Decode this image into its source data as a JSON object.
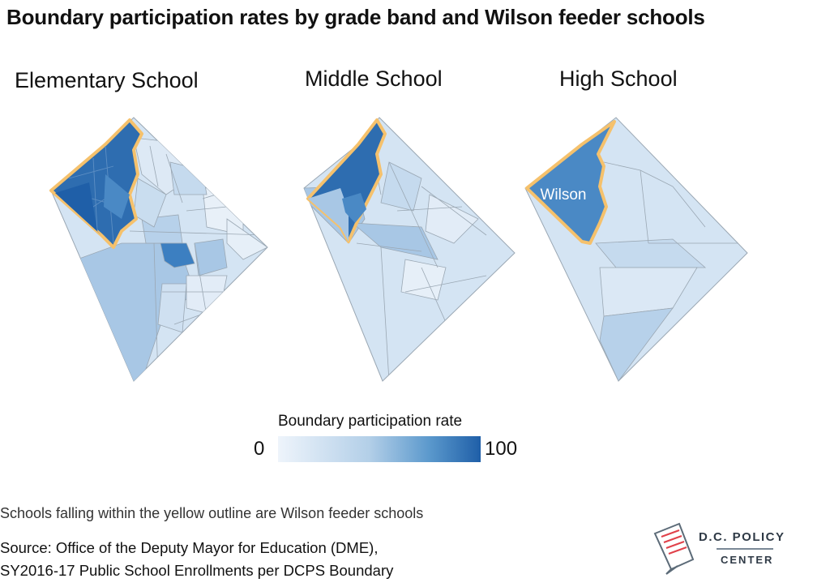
{
  "title": "Boundary participation rates by grade band and Wilson feeder schools",
  "maps": [
    {
      "label": "Elementary School"
    },
    {
      "label": "Middle School"
    },
    {
      "label": "High School",
      "region_label": "Wilson"
    }
  ],
  "legend": {
    "title": "Boundary participation rate",
    "min": "0",
    "max": "100",
    "colors": [
      "#eef4fb",
      "#b3cfe8",
      "#5a98cc",
      "#1f5fa8"
    ]
  },
  "outline_color": "#f5c16c",
  "note": "Schools falling within the yellow outline are Wilson feeder schools",
  "source_line1": "Source: Office of the Deputy Mayor for Education (DME),",
  "source_line2": "SY2016-17 Public School Enrollments per DCPS Boundary",
  "logo": {
    "line1": "D.C. POLICY",
    "line2": "CENTER"
  }
}
